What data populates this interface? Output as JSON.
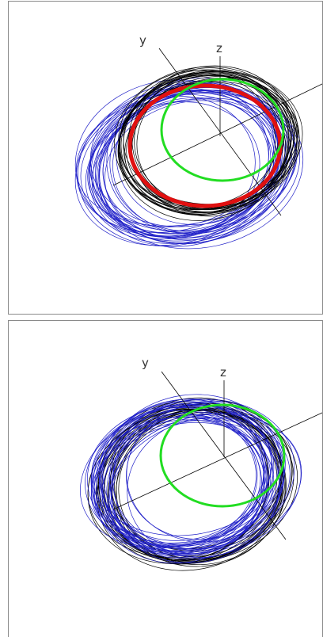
{
  "panels": [
    {
      "id": "top",
      "axis_labels": {
        "y": "y",
        "z": "z"
      },
      "curves": [
        {
          "kind": "orbit-bundle",
          "color": "#2020c8"
        },
        {
          "kind": "orbit-bundle",
          "color": "#000000"
        },
        {
          "kind": "single-ellipse",
          "color": "#e01010"
        },
        {
          "kind": "single-ellipse",
          "color": "#22dd22"
        }
      ]
    },
    {
      "id": "bottom",
      "axis_labels": {
        "y": "y",
        "z": "z"
      },
      "curves": [
        {
          "kind": "orbit-bundle",
          "color": "#000000"
        },
        {
          "kind": "orbit-bundle",
          "color": "#2020c8"
        },
        {
          "kind": "single-ellipse",
          "color": "#22dd22"
        }
      ]
    }
  ]
}
